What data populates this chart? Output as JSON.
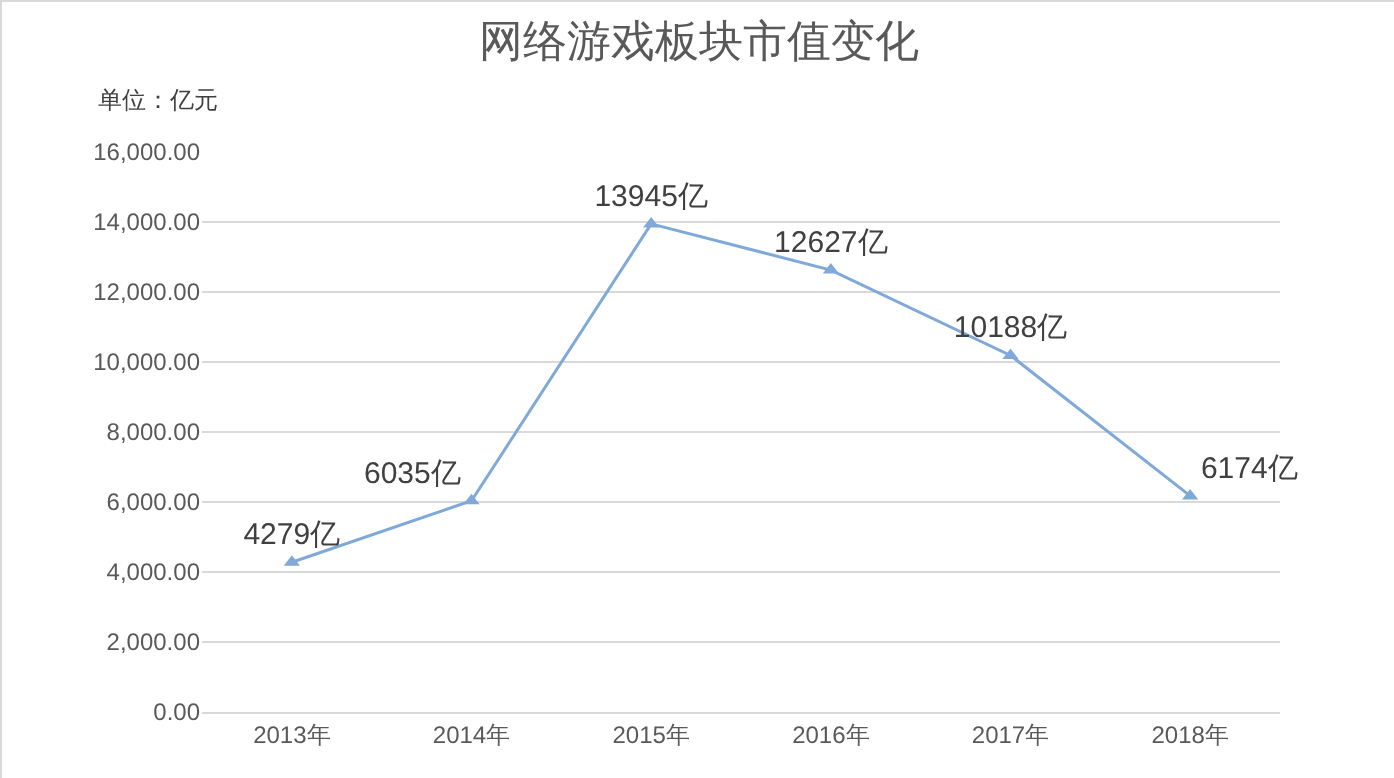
{
  "chart_data": {
    "type": "line",
    "title": "网络游戏板块市值变化",
    "ylabel": "单位：亿元",
    "categories": [
      "2013年",
      "2014年",
      "2015年",
      "2016年",
      "2017年",
      "2018年"
    ],
    "series": [
      {
        "color": "#7fa9d8",
        "values": [
          4279,
          6035,
          13945,
          12627,
          10188,
          6174
        ],
        "value_labels": [
          "4279亿",
          "6035亿",
          "13945亿",
          "12627亿",
          "10188亿",
          "6174亿"
        ]
      }
    ],
    "ylim": [
      0,
      16000
    ],
    "yticks": [
      {
        "value": 0,
        "label": "0.00"
      },
      {
        "value": 2000,
        "label": "2,000.00"
      },
      {
        "value": 4000,
        "label": "4,000.00"
      },
      {
        "value": 6000,
        "label": "6,000.00"
      },
      {
        "value": 8000,
        "label": "8,000.00"
      },
      {
        "value": 10000,
        "label": "10,000.00"
      },
      {
        "value": 12000,
        "label": "12,000.00"
      },
      {
        "value": 14000,
        "label": "14,000.00"
      },
      {
        "value": 16000,
        "label": "16,000.00"
      }
    ],
    "grid": "y",
    "marker": "triangle",
    "line_style": "solid"
  }
}
